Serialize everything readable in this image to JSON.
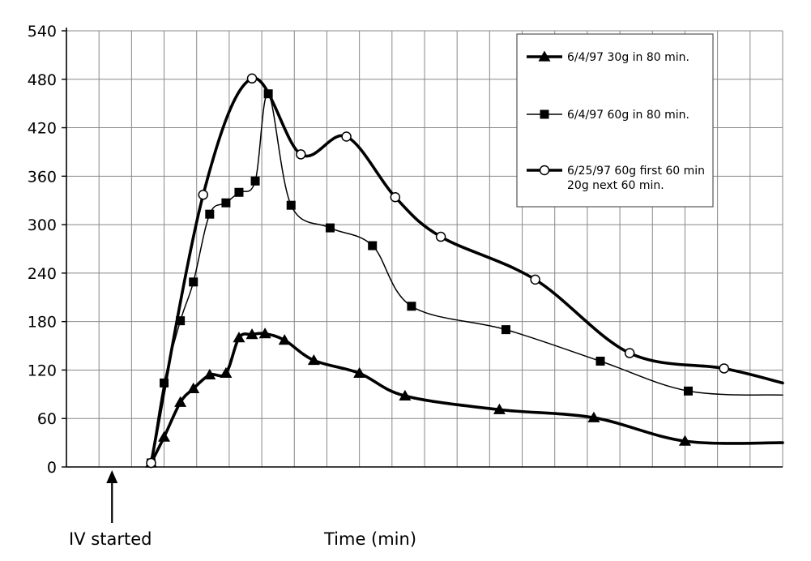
{
  "chart_data": {
    "type": "line",
    "title": "",
    "xlabel": "Time (min)",
    "ylabel": "",
    "ylim": [
      0,
      540
    ],
    "yticks": [
      0,
      60,
      120,
      180,
      240,
      300,
      360,
      420,
      480,
      540
    ],
    "xlim": [
      -10,
      210
    ],
    "grid": true,
    "legend_position": "top-right",
    "annotation": {
      "label": "IV started",
      "x": 4,
      "y": 0
    },
    "series": [
      {
        "name": "6/4/97 30g in 80 min.",
        "marker": "triangle",
        "line_style": "thick",
        "points": [
          [
            16,
            5
          ],
          [
            20,
            37
          ],
          [
            25,
            80
          ],
          [
            29,
            97
          ],
          [
            34,
            114
          ],
          [
            39,
            116
          ],
          [
            43,
            160
          ],
          [
            47,
            164
          ],
          [
            51,
            165
          ],
          [
            57,
            157
          ],
          [
            66,
            132
          ],
          [
            80,
            116
          ],
          [
            94,
            88
          ],
          [
            123,
            71
          ],
          [
            152,
            61
          ],
          [
            180,
            32
          ]
        ],
        "end": [
          210,
          30
        ]
      },
      {
        "name": "6/4/97 60g in 80 min.",
        "marker": "square",
        "line_style": "thin",
        "points": [
          [
            16,
            5
          ],
          [
            20,
            104
          ],
          [
            25,
            181
          ],
          [
            29,
            229
          ],
          [
            34,
            313
          ],
          [
            39,
            327
          ],
          [
            43,
            340
          ],
          [
            48,
            354
          ],
          [
            52,
            462
          ],
          [
            59,
            324
          ],
          [
            71,
            296
          ],
          [
            84,
            274
          ],
          [
            96,
            199
          ],
          [
            125,
            170
          ],
          [
            154,
            131
          ],
          [
            181,
            94
          ]
        ],
        "end": [
          210,
          89
        ]
      },
      {
        "name": "6/25/97 60g first 60 min 20g next 60 min.",
        "marker": "circle",
        "line_style": "thick",
        "points": [
          [
            16,
            5
          ],
          [
            32,
            337
          ],
          [
            47,
            481
          ],
          [
            62,
            387
          ],
          [
            76,
            409
          ],
          [
            91,
            334
          ],
          [
            105,
            285
          ],
          [
            134,
            232
          ],
          [
            163,
            141
          ],
          [
            192,
            122
          ]
        ],
        "end": [
          210,
          104
        ]
      }
    ]
  }
}
